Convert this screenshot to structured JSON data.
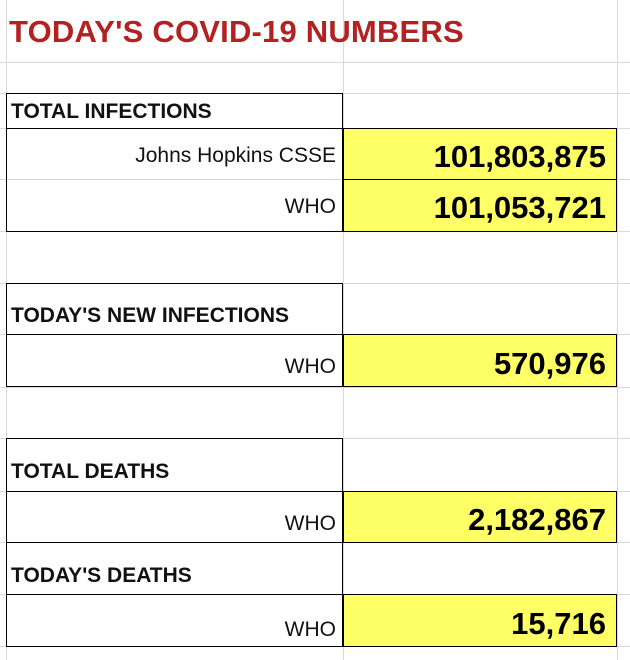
{
  "title": "TODAY'S COVID-19 NUMBERS",
  "colors": {
    "title": "#b22222",
    "highlight": "#ffff66",
    "gridline": "#d9d9d9"
  },
  "sections": [
    {
      "label": "TOTAL INFECTIONS",
      "rows": [
        {
          "source": "Johns Hopkins CSSE",
          "value": "101,803,875"
        },
        {
          "source": "WHO",
          "value": "101,053,721"
        }
      ]
    },
    {
      "label": "TODAY'S NEW INFECTIONS",
      "rows": [
        {
          "source": "WHO",
          "value": "570,976"
        }
      ]
    },
    {
      "label": "TOTAL DEATHS",
      "rows": [
        {
          "source": "WHO",
          "value": "2,182,867"
        }
      ]
    },
    {
      "label": "TODAY'S DEATHS",
      "rows": [
        {
          "source": "WHO",
          "value": "15,716"
        }
      ]
    }
  ]
}
